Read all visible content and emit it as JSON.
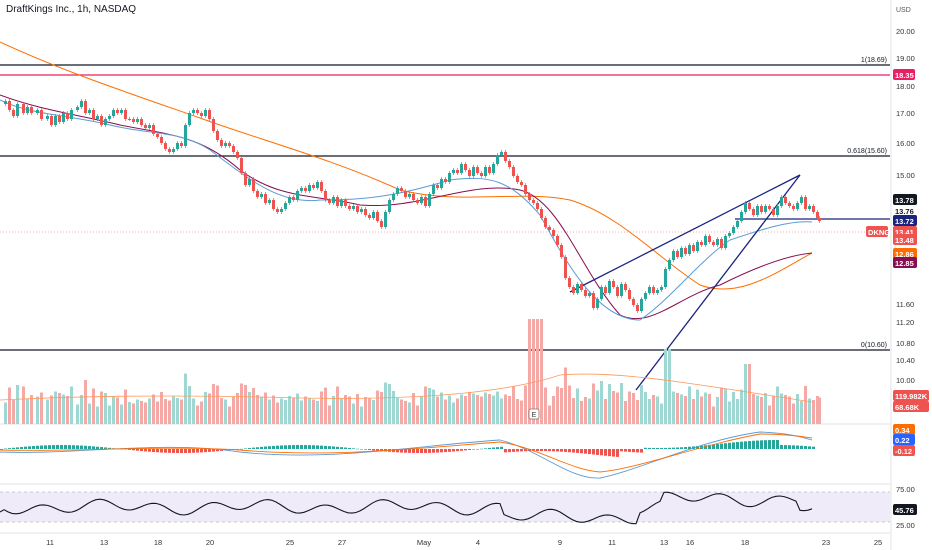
{
  "header": {
    "title": "DraftKings Inc., 1h, NASDAQ"
  },
  "chart_data": {
    "type": "candlestick",
    "symbol": "DKNG",
    "currency_label": "USD",
    "y_ticks": [
      "20.00",
      "19.00",
      "18.00",
      "17.00",
      "16.00",
      "15.00",
      "14.00",
      "12.90",
      "12.20",
      "11.60",
      "11.20",
      "10.80",
      "10.40",
      "10.00",
      "9.50"
    ],
    "x_ticks": [
      "11",
      "13",
      "18",
      "20",
      "25",
      "27",
      "May",
      "4",
      "9",
      "11",
      "13",
      "16",
      "18",
      "23",
      "25"
    ],
    "fib_levels": [
      {
        "label": "1(18.69)",
        "value": 18.69
      },
      {
        "label": "0.618(15.60)",
        "value": 15.6
      },
      {
        "label": "0(10.60)",
        "value": 10.6
      }
    ],
    "resistance_line": {
      "value": 18.35,
      "label": "18.35",
      "color": "#e91e63"
    },
    "support_line": {
      "value": 13.72
    },
    "price_badges": [
      {
        "text": "13.78",
        "bg": "#131722",
        "color": "#ffffff"
      },
      {
        "text": "13.76",
        "bg": "#ffffff",
        "color": "#131722"
      },
      {
        "text": "13.72",
        "bg": "#1a237e",
        "color": "#ffffff"
      },
      {
        "text": "DKNG",
        "bg": "#ef5350",
        "color": "#ffffff"
      },
      {
        "text": "13.41",
        "bg": "#ef5350",
        "color": "#ffffff"
      },
      {
        "text": "13.48",
        "bg": "#ef5350",
        "color": "#ffffff"
      },
      {
        "text": "12.86",
        "bg": "#ff6d00",
        "color": "#ffffff"
      },
      {
        "text": "12.85",
        "bg": "#880e4f",
        "color": "#ffffff"
      }
    ],
    "volume_badges": [
      {
        "text": "119.982K",
        "bg": "#ef5350",
        "color": "#ffffff"
      },
      {
        "text": "68.68K",
        "bg": "#ef5350",
        "color": "#ffffff"
      }
    ],
    "macd_badges": [
      {
        "text": "0.34",
        "bg": "#ff6d00",
        "color": "#ffffff"
      },
      {
        "text": "0.22",
        "bg": "#2962ff",
        "color": "#ffffff"
      },
      {
        "text": "-0.12",
        "bg": "#ef5350",
        "color": "#ffffff"
      }
    ],
    "rsi": {
      "ticks": [
        "75.00",
        "25.00"
      ],
      "value": "45.76",
      "upper": 75,
      "lower": 25
    },
    "earnings_marker": "E",
    "price_path": [
      [
        0,
        17.3
      ],
      [
        4,
        17.4
      ],
      [
        8,
        17.1
      ],
      [
        12,
        16.9
      ],
      [
        16,
        17.3
      ],
      [
        22,
        17.0
      ],
      [
        26,
        17.2
      ],
      [
        30,
        17.0
      ],
      [
        36,
        17.1
      ],
      [
        40,
        16.8
      ],
      [
        46,
        16.9
      ],
      [
        50,
        16.6
      ],
      [
        54,
        16.9
      ],
      [
        58,
        16.7
      ],
      [
        62,
        17.0
      ],
      [
        66,
        16.8
      ],
      [
        70,
        17.1
      ],
      [
        76,
        17.2
      ],
      [
        80,
        17.4
      ],
      [
        84,
        17.0
      ],
      [
        88,
        17.1
      ],
      [
        92,
        16.8
      ],
      [
        96,
        16.9
      ],
      [
        100,
        16.6
      ],
      [
        104,
        16.8
      ],
      [
        108,
        16.9
      ],
      [
        112,
        17.1
      ],
      [
        116,
        17.0
      ],
      [
        120,
        17.1
      ],
      [
        124,
        16.8
      ],
      [
        128,
        16.8
      ],
      [
        132,
        16.7
      ],
      [
        136,
        16.8
      ],
      [
        140,
        16.6
      ],
      [
        144,
        16.5
      ],
      [
        148,
        16.6
      ],
      [
        152,
        16.3
      ],
      [
        156,
        16.2
      ],
      [
        160,
        16.0
      ],
      [
        164,
        15.8
      ],
      [
        168,
        15.7
      ],
      [
        172,
        15.8
      ],
      [
        176,
        16.0
      ],
      [
        180,
        15.9
      ],
      [
        184,
        16.6
      ],
      [
        188,
        17.0
      ],
      [
        192,
        17.1
      ],
      [
        196,
        17.0
      ],
      [
        200,
        16.9
      ],
      [
        204,
        17.1
      ],
      [
        208,
        16.8
      ],
      [
        212,
        16.4
      ],
      [
        216,
        16.1
      ],
      [
        220,
        15.9
      ],
      [
        224,
        16.0
      ],
      [
        228,
        15.9
      ],
      [
        232,
        15.7
      ],
      [
        236,
        15.5
      ],
      [
        240,
        15.0
      ],
      [
        244,
        14.6
      ],
      [
        248,
        14.8
      ],
      [
        252,
        14.4
      ],
      [
        256,
        14.2
      ],
      [
        260,
        14.3
      ],
      [
        264,
        14.0
      ],
      [
        268,
        14.1
      ],
      [
        272,
        13.8
      ],
      [
        276,
        13.7
      ],
      [
        280,
        13.8
      ],
      [
        284,
        14.0
      ],
      [
        288,
        14.2
      ],
      [
        292,
        14.1
      ],
      [
        296,
        14.4
      ],
      [
        300,
        14.5
      ],
      [
        304,
        14.4
      ],
      [
        308,
        14.6
      ],
      [
        312,
        14.5
      ],
      [
        316,
        14.7
      ],
      [
        320,
        14.4
      ],
      [
        324,
        14.1
      ],
      [
        328,
        14.0
      ],
      [
        332,
        14.2
      ],
      [
        336,
        13.9
      ],
      [
        340,
        14.1
      ],
      [
        344,
        13.9
      ],
      [
        348,
        13.8
      ],
      [
        352,
        13.9
      ],
      [
        356,
        13.7
      ],
      [
        360,
        13.8
      ],
      [
        364,
        13.6
      ],
      [
        368,
        13.5
      ],
      [
        372,
        13.7
      ],
      [
        376,
        13.4
      ],
      [
        380,
        13.2
      ],
      [
        384,
        13.7
      ],
      [
        388,
        14.1
      ],
      [
        392,
        14.3
      ],
      [
        396,
        14.5
      ],
      [
        400,
        14.4
      ],
      [
        404,
        14.2
      ],
      [
        408,
        14.3
      ],
      [
        412,
        14.1
      ],
      [
        416,
        14.0
      ],
      [
        420,
        14.2
      ],
      [
        424,
        13.9
      ],
      [
        428,
        14.3
      ],
      [
        432,
        14.6
      ],
      [
        436,
        14.5
      ],
      [
        440,
        14.8
      ],
      [
        444,
        14.7
      ],
      [
        448,
        15.0
      ],
      [
        452,
        15.1
      ],
      [
        456,
        15.0
      ],
      [
        460,
        15.3
      ],
      [
        464,
        15.1
      ],
      [
        468,
        14.9
      ],
      [
        472,
        15.2
      ],
      [
        476,
        15.0
      ],
      [
        480,
        14.9
      ],
      [
        484,
        15.2
      ],
      [
        488,
        15.0
      ],
      [
        492,
        15.3
      ],
      [
        496,
        15.6
      ],
      [
        500,
        15.7
      ],
      [
        504,
        15.4
      ],
      [
        508,
        15.2
      ],
      [
        512,
        14.9
      ],
      [
        516,
        14.7
      ],
      [
        520,
        14.6
      ],
      [
        524,
        14.3
      ],
      [
        528,
        14.1
      ],
      [
        532,
        14.0
      ],
      [
        536,
        13.8
      ],
      [
        540,
        13.5
      ],
      [
        544,
        13.2
      ],
      [
        548,
        13.1
      ],
      [
        552,
        12.9
      ],
      [
        556,
        12.6
      ],
      [
        560,
        12.2
      ],
      [
        564,
        11.5
      ],
      [
        568,
        11.2
      ],
      [
        572,
        11.0
      ],
      [
        576,
        11.3
      ],
      [
        580,
        11.1
      ],
      [
        584,
        10.9
      ],
      [
        588,
        11.0
      ],
      [
        592,
        10.5
      ],
      [
        596,
        10.8
      ],
      [
        600,
        11.2
      ],
      [
        604,
        11.0
      ],
      [
        608,
        11.4
      ],
      [
        612,
        11.2
      ],
      [
        616,
        10.9
      ],
      [
        620,
        11.3
      ],
      [
        624,
        11.1
      ],
      [
        628,
        10.8
      ],
      [
        632,
        10.6
      ],
      [
        636,
        10.4
      ],
      [
        640,
        10.8
      ],
      [
        644,
        11.0
      ],
      [
        648,
        11.2
      ],
      [
        652,
        11.0
      ],
      [
        656,
        11.1
      ],
      [
        660,
        11.2
      ],
      [
        664,
        11.8
      ],
      [
        668,
        12.1
      ],
      [
        672,
        12.4
      ],
      [
        676,
        12.2
      ],
      [
        680,
        12.5
      ],
      [
        684,
        12.3
      ],
      [
        688,
        12.6
      ],
      [
        692,
        12.4
      ],
      [
        696,
        12.7
      ],
      [
        700,
        12.6
      ],
      [
        704,
        12.9
      ],
      [
        708,
        12.7
      ],
      [
        712,
        12.6
      ],
      [
        716,
        12.8
      ],
      [
        720,
        12.5
      ],
      [
        724,
        12.9
      ],
      [
        728,
        13.0
      ],
      [
        732,
        13.2
      ],
      [
        736,
        13.4
      ],
      [
        740,
        13.7
      ],
      [
        744,
        14.0
      ],
      [
        748,
        13.8
      ],
      [
        752,
        13.6
      ],
      [
        756,
        13.9
      ],
      [
        760,
        13.7
      ],
      [
        764,
        13.9
      ],
      [
        768,
        13.8
      ],
      [
        772,
        13.6
      ],
      [
        776,
        13.9
      ],
      [
        780,
        14.2
      ],
      [
        784,
        14.0
      ],
      [
        788,
        13.9
      ],
      [
        792,
        13.8
      ],
      [
        796,
        14.0
      ],
      [
        800,
        14.2
      ],
      [
        804,
        13.8
      ],
      [
        808,
        13.9
      ],
      [
        812,
        13.7
      ],
      [
        816,
        13.5
      ],
      [
        818,
        13.4
      ]
    ]
  }
}
